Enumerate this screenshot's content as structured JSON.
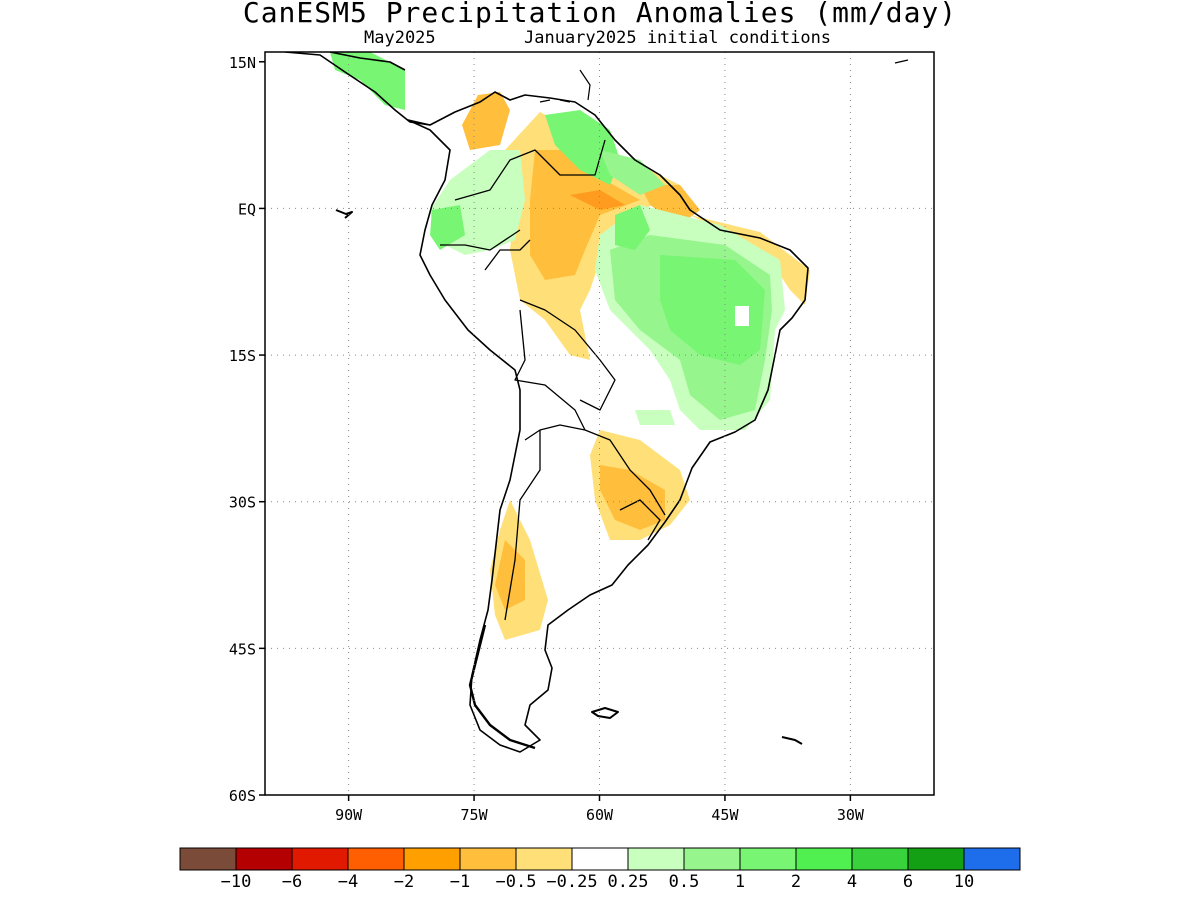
{
  "header": {
    "title": "CanESM5 Precipitation Anomalies (mm/day)",
    "month": "May2025",
    "init": "January2025 initial conditions"
  },
  "axes": {
    "lat_ticks": [
      "15N",
      "EQ",
      "15S",
      "30S",
      "45S",
      "60S"
    ],
    "lon_ticks": [
      "90W",
      "75W",
      "60W",
      "45W",
      "30W"
    ],
    "lat_values": [
      15,
      0,
      -15,
      -30,
      -45,
      -60
    ],
    "lon_values": [
      -90,
      -75,
      -60,
      -45,
      -30
    ],
    "lon_range": [
      -100,
      -20
    ],
    "lat_range": [
      -60,
      16
    ],
    "grid": "dotted"
  },
  "colorbar": {
    "colors": [
      "#7b4b3a",
      "#b40000",
      "#e01900",
      "#ff5f00",
      "#ffa000",
      "#ffbe3c",
      "#ffe078",
      "#ffffff",
      "#c8ffbe",
      "#96f58c",
      "#78f573",
      "#50f050",
      "#37d23c",
      "#14a014",
      "#1e6eeb"
    ],
    "labels": [
      "-10",
      "-6",
      "-4",
      "-2",
      "-1",
      "-0.5",
      "-0.25",
      "0.25",
      "0.5",
      "1",
      "2",
      "4",
      "6",
      "10"
    ]
  }
}
